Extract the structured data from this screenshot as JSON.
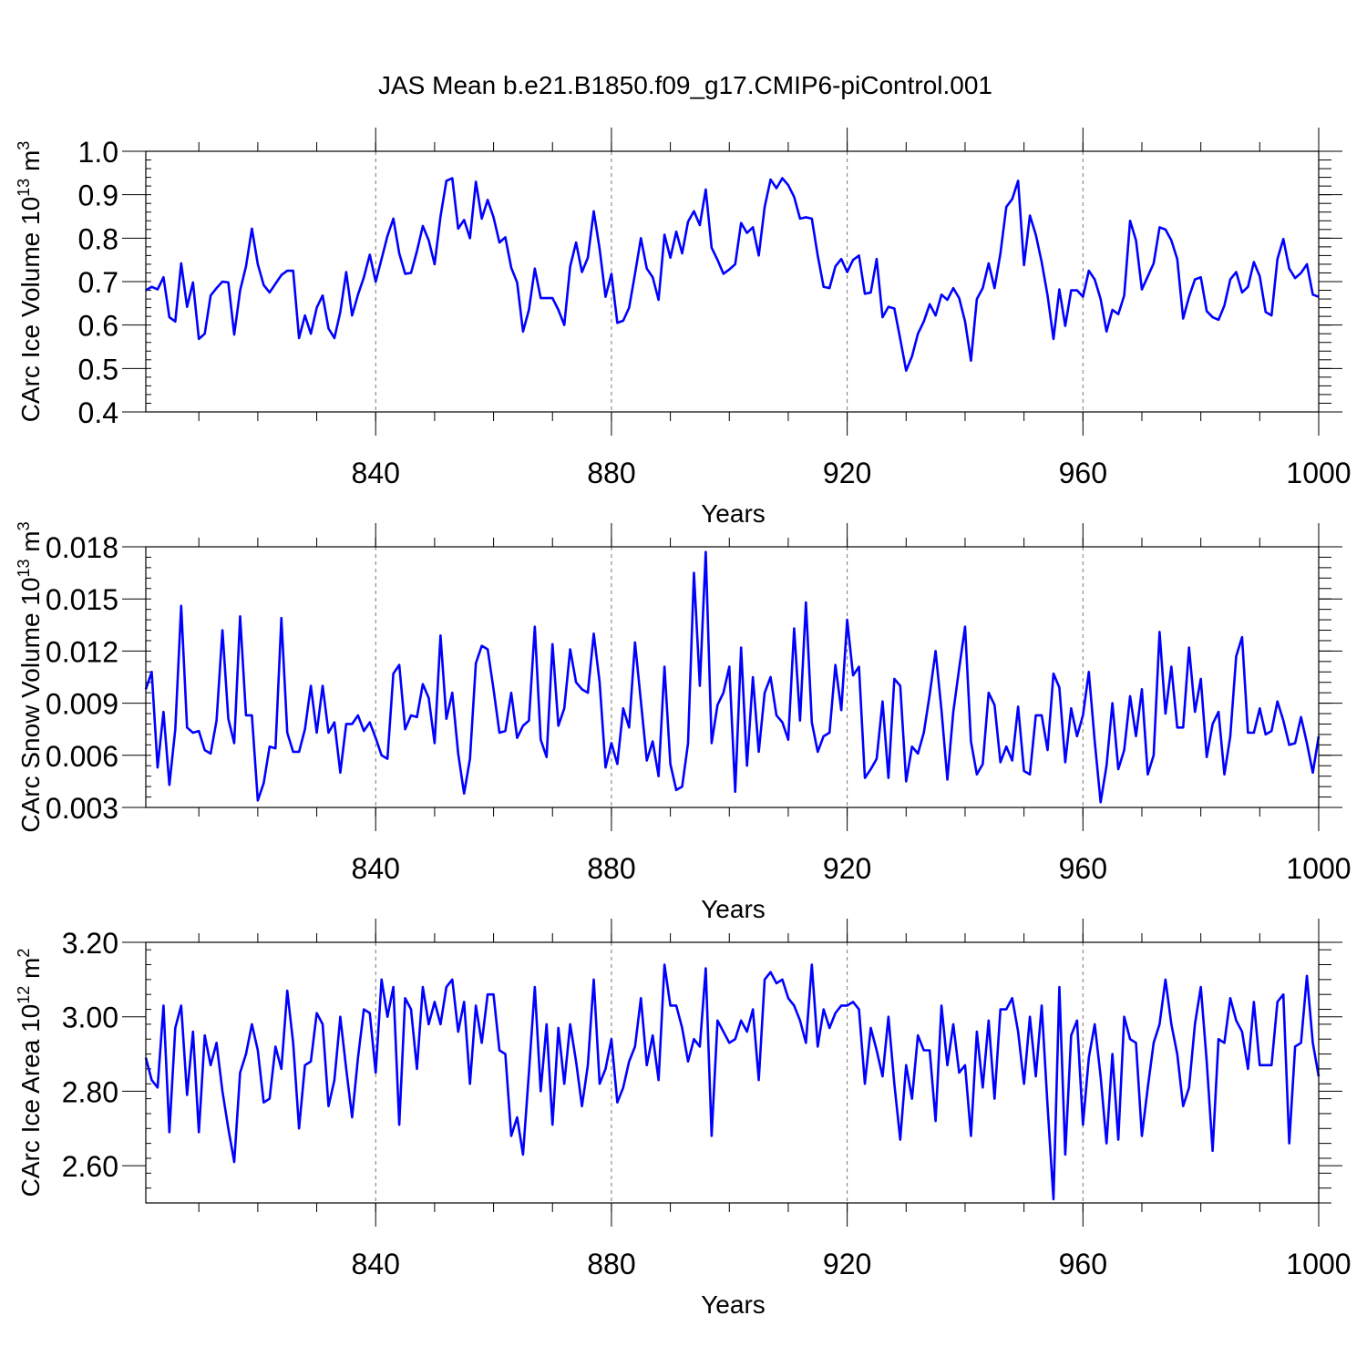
{
  "title": "JAS Mean b.e21.B1850.f09_g17.CMIP6-piControl.001",
  "colors": {
    "line": "#0000ff",
    "axis": "#000000",
    "grid": "#000000"
  },
  "chart_data": [
    {
      "type": "line",
      "name": "ice-volume",
      "ylabel_main": "CArc Ice Volume 10",
      "ylabel_exp": "13",
      "ylabel_unit": "m",
      "ylabel_unit_exp": "3",
      "xlabel": "Years",
      "xlim": [
        801,
        1000
      ],
      "ylim": [
        0.4,
        1.0
      ],
      "xticks": [
        840,
        880,
        920,
        960,
        1000
      ],
      "xtick_labels": [
        "840",
        "880",
        "920",
        "960",
        "1000"
      ],
      "yticks": [
        0.4,
        0.5,
        0.6,
        0.7,
        0.8,
        0.9,
        1.0
      ],
      "ytick_labels": [
        "0.4",
        "0.5",
        "0.6",
        "0.7",
        "0.8",
        "0.9",
        "1.0"
      ],
      "grid_x": true,
      "x_start": 801,
      "values": [
        0.68,
        0.688,
        0.682,
        0.71,
        0.618,
        0.608,
        0.742,
        0.642,
        0.698,
        0.568,
        0.58,
        0.668,
        0.685,
        0.7,
        0.698,
        0.578,
        0.68,
        0.735,
        0.822,
        0.74,
        0.692,
        0.675,
        0.695,
        0.715,
        0.725,
        0.725,
        0.57,
        0.622,
        0.58,
        0.64,
        0.668,
        0.592,
        0.57,
        0.63,
        0.722,
        0.622,
        0.67,
        0.71,
        0.762,
        0.7,
        0.752,
        0.805,
        0.845,
        0.765,
        0.718,
        0.72,
        0.77,
        0.828,
        0.795,
        0.74,
        0.85,
        0.932,
        0.938,
        0.822,
        0.842,
        0.8,
        0.93,
        0.845,
        0.888,
        0.848,
        0.79,
        0.802,
        0.732,
        0.698,
        0.585,
        0.635,
        0.73,
        0.662,
        0.662,
        0.662,
        0.635,
        0.6,
        0.735,
        0.79,
        0.722,
        0.755,
        0.862,
        0.775,
        0.665,
        0.718,
        0.605,
        0.61,
        0.64,
        0.718,
        0.8,
        0.73,
        0.71,
        0.658,
        0.808,
        0.755,
        0.815,
        0.765,
        0.838,
        0.862,
        0.83,
        0.912,
        0.778,
        0.75,
        0.718,
        0.728,
        0.74,
        0.835,
        0.812,
        0.825,
        0.76,
        0.872,
        0.935,
        0.915,
        0.938,
        0.922,
        0.895,
        0.845,
        0.848,
        0.845,
        0.76,
        0.688,
        0.685,
        0.735,
        0.752,
        0.722,
        0.75,
        0.76,
        0.672,
        0.675,
        0.752,
        0.618,
        0.642,
        0.638,
        0.568,
        0.495,
        0.528,
        0.58,
        0.608,
        0.648,
        0.622,
        0.67,
        0.658,
        0.685,
        0.662,
        0.608,
        0.518,
        0.66,
        0.685,
        0.742,
        0.685,
        0.765,
        0.872,
        0.89,
        0.932,
        0.738,
        0.852,
        0.808,
        0.745,
        0.668,
        0.568,
        0.682,
        0.598,
        0.68,
        0.68,
        0.665,
        0.725,
        0.705,
        0.66,
        0.585,
        0.635,
        0.625,
        0.668,
        0.84,
        0.795,
        0.682,
        0.712,
        0.742,
        0.825,
        0.82,
        0.795,
        0.752,
        0.615,
        0.665,
        0.705,
        0.71,
        0.632,
        0.618,
        0.612,
        0.645,
        0.705,
        0.722,
        0.675,
        0.688,
        0.745,
        0.712,
        0.63,
        0.622,
        0.752,
        0.798,
        0.73,
        0.708,
        0.72,
        0.74,
        0.67,
        0.665
      ]
    },
    {
      "type": "line",
      "name": "snow-volume",
      "ylabel_main": "CArc Snow Volume 10",
      "ylabel_exp": "13",
      "ylabel_unit": "m",
      "ylabel_unit_exp": "3",
      "xlabel": "Years",
      "xlim": [
        801,
        1000
      ],
      "ylim": [
        0.003,
        0.018
      ],
      "xticks": [
        840,
        880,
        920,
        960,
        1000
      ],
      "xtick_labels": [
        "840",
        "880",
        "920",
        "960",
        "1000"
      ],
      "yticks": [
        0.003,
        0.006,
        0.009,
        0.012,
        0.015,
        0.018
      ],
      "ytick_labels": [
        "0.003",
        "0.006",
        "0.009",
        "0.012",
        "0.015",
        "0.018"
      ],
      "grid_x": true,
      "x_start": 801,
      "values": [
        0.0098,
        0.0108,
        0.0053,
        0.0085,
        0.0043,
        0.0075,
        0.0146,
        0.0076,
        0.0073,
        0.0074,
        0.0063,
        0.0061,
        0.008,
        0.0132,
        0.0081,
        0.0067,
        0.014,
        0.0083,
        0.0083,
        0.0034,
        0.0044,
        0.0065,
        0.0064,
        0.0139,
        0.0073,
        0.0062,
        0.0062,
        0.0075,
        0.01,
        0.0073,
        0.01,
        0.0073,
        0.0079,
        0.005,
        0.0078,
        0.0078,
        0.0083,
        0.0074,
        0.0079,
        0.007,
        0.006,
        0.0058,
        0.0107,
        0.0112,
        0.0075,
        0.0083,
        0.0082,
        0.0101,
        0.0093,
        0.0067,
        0.0129,
        0.0081,
        0.0096,
        0.0061,
        0.0038,
        0.0058,
        0.0113,
        0.0123,
        0.0121,
        0.0098,
        0.0073,
        0.0074,
        0.0096,
        0.007,
        0.0077,
        0.008,
        0.0134,
        0.0069,
        0.0059,
        0.0124,
        0.0077,
        0.0087,
        0.0121,
        0.0102,
        0.0098,
        0.0096,
        0.013,
        0.0102,
        0.0053,
        0.0067,
        0.0055,
        0.0087,
        0.0076,
        0.0125,
        0.0091,
        0.0057,
        0.0068,
        0.0048,
        0.0111,
        0.0055,
        0.004,
        0.0042,
        0.0067,
        0.0165,
        0.01,
        0.0177,
        0.0067,
        0.0089,
        0.0096,
        0.0111,
        0.0039,
        0.0122,
        0.0054,
        0.0105,
        0.0062,
        0.0096,
        0.0105,
        0.0083,
        0.0079,
        0.0069,
        0.0133,
        0.008,
        0.0148,
        0.0079,
        0.0062,
        0.0071,
        0.0073,
        0.0112,
        0.0086,
        0.0138,
        0.0106,
        0.0111,
        0.0047,
        0.0052,
        0.0058,
        0.0091,
        0.0047,
        0.0104,
        0.01,
        0.0045,
        0.0065,
        0.0061,
        0.0073,
        0.0095,
        0.012,
        0.0086,
        0.0046,
        0.0085,
        0.011,
        0.0134,
        0.0068,
        0.0049,
        0.0055,
        0.0096,
        0.0089,
        0.0056,
        0.0065,
        0.0057,
        0.0088,
        0.0051,
        0.0049,
        0.0083,
        0.0083,
        0.0063,
        0.0107,
        0.0099,
        0.0056,
        0.0087,
        0.0071,
        0.0083,
        0.0108,
        0.0068,
        0.0033,
        0.0054,
        0.009,
        0.0052,
        0.0063,
        0.0094,
        0.0071,
        0.0098,
        0.0049,
        0.006,
        0.0131,
        0.0084,
        0.0111,
        0.0076,
        0.0076,
        0.0122,
        0.0085,
        0.0104,
        0.0059,
        0.0078,
        0.0085,
        0.0049,
        0.0071,
        0.0117,
        0.0128,
        0.0073,
        0.0073,
        0.0087,
        0.0072,
        0.0074,
        0.0091,
        0.008,
        0.0066,
        0.0067,
        0.0082,
        0.0067,
        0.005,
        0.0071
      ]
    },
    {
      "type": "line",
      "name": "ice-area",
      "ylabel_main": "CArc Ice Area 10",
      "ylabel_exp": "12",
      "ylabel_unit": "m",
      "ylabel_unit_exp": "2",
      "xlabel": "Years",
      "xlim": [
        801,
        1000
      ],
      "ylim": [
        2.5,
        3.2
      ],
      "xticks": [
        840,
        880,
        920,
        960,
        1000
      ],
      "xtick_labels": [
        "840",
        "880",
        "920",
        "960",
        "1000"
      ],
      "yticks": [
        2.6,
        2.8,
        3.0,
        3.2
      ],
      "ytick_labels": [
        "2.60",
        "2.80",
        "3.00",
        "3.20"
      ],
      "grid_x": true,
      "x_start": 801,
      "values": [
        2.89,
        2.83,
        2.81,
        3.03,
        2.69,
        2.97,
        3.03,
        2.79,
        2.96,
        2.69,
        2.95,
        2.87,
        2.93,
        2.8,
        2.7,
        2.61,
        2.85,
        2.9,
        2.98,
        2.91,
        2.77,
        2.78,
        2.92,
        2.86,
        3.07,
        2.93,
        2.7,
        2.87,
        2.88,
        3.01,
        2.98,
        2.76,
        2.83,
        3.0,
        2.86,
        2.73,
        2.89,
        3.02,
        3.01,
        2.85,
        3.1,
        3.0,
        3.08,
        2.71,
        3.05,
        3.02,
        2.86,
        3.08,
        2.98,
        3.04,
        2.98,
        3.08,
        3.1,
        2.96,
        3.04,
        2.82,
        3.03,
        2.93,
        3.06,
        3.06,
        2.91,
        2.9,
        2.68,
        2.73,
        2.63,
        2.85,
        3.08,
        2.8,
        2.98,
        2.71,
        2.97,
        2.82,
        2.98,
        2.88,
        2.76,
        2.87,
        3.1,
        2.82,
        2.86,
        2.94,
        2.77,
        2.81,
        2.88,
        2.92,
        3.05,
        2.87,
        2.95,
        2.83,
        3.14,
        3.03,
        3.03,
        2.97,
        2.88,
        2.94,
        2.92,
        3.13,
        2.68,
        2.99,
        2.96,
        2.93,
        2.94,
        2.99,
        2.96,
        3.02,
        2.83,
        3.1,
        3.12,
        3.09,
        3.1,
        3.05,
        3.03,
        2.99,
        2.93,
        3.14,
        2.92,
        3.02,
        2.97,
        3.01,
        3.03,
        3.03,
        3.04,
        3.02,
        2.82,
        2.97,
        2.91,
        2.84,
        3.0,
        2.82,
        2.67,
        2.87,
        2.78,
        2.95,
        2.91,
        2.91,
        2.72,
        3.03,
        2.87,
        2.98,
        2.85,
        2.87,
        2.68,
        2.96,
        2.81,
        2.99,
        2.78,
        3.02,
        3.02,
        3.05,
        2.96,
        2.82,
        3.0,
        2.84,
        3.03,
        2.76,
        2.51,
        3.08,
        2.63,
        2.95,
        2.99,
        2.71,
        2.89,
        2.98,
        2.84,
        2.66,
        2.9,
        2.67,
        3.0,
        2.94,
        2.93,
        2.68,
        2.81,
        2.93,
        2.98,
        3.1,
        2.98,
        2.9,
        2.76,
        2.81,
        2.98,
        3.08,
        2.88,
        2.64,
        2.94,
        2.93,
        3.05,
        2.99,
        2.96,
        2.86,
        3.04,
        2.87,
        2.87,
        2.87,
        3.04,
        3.06,
        2.66,
        2.92,
        2.93,
        3.11,
        2.93,
        2.84
      ]
    }
  ]
}
